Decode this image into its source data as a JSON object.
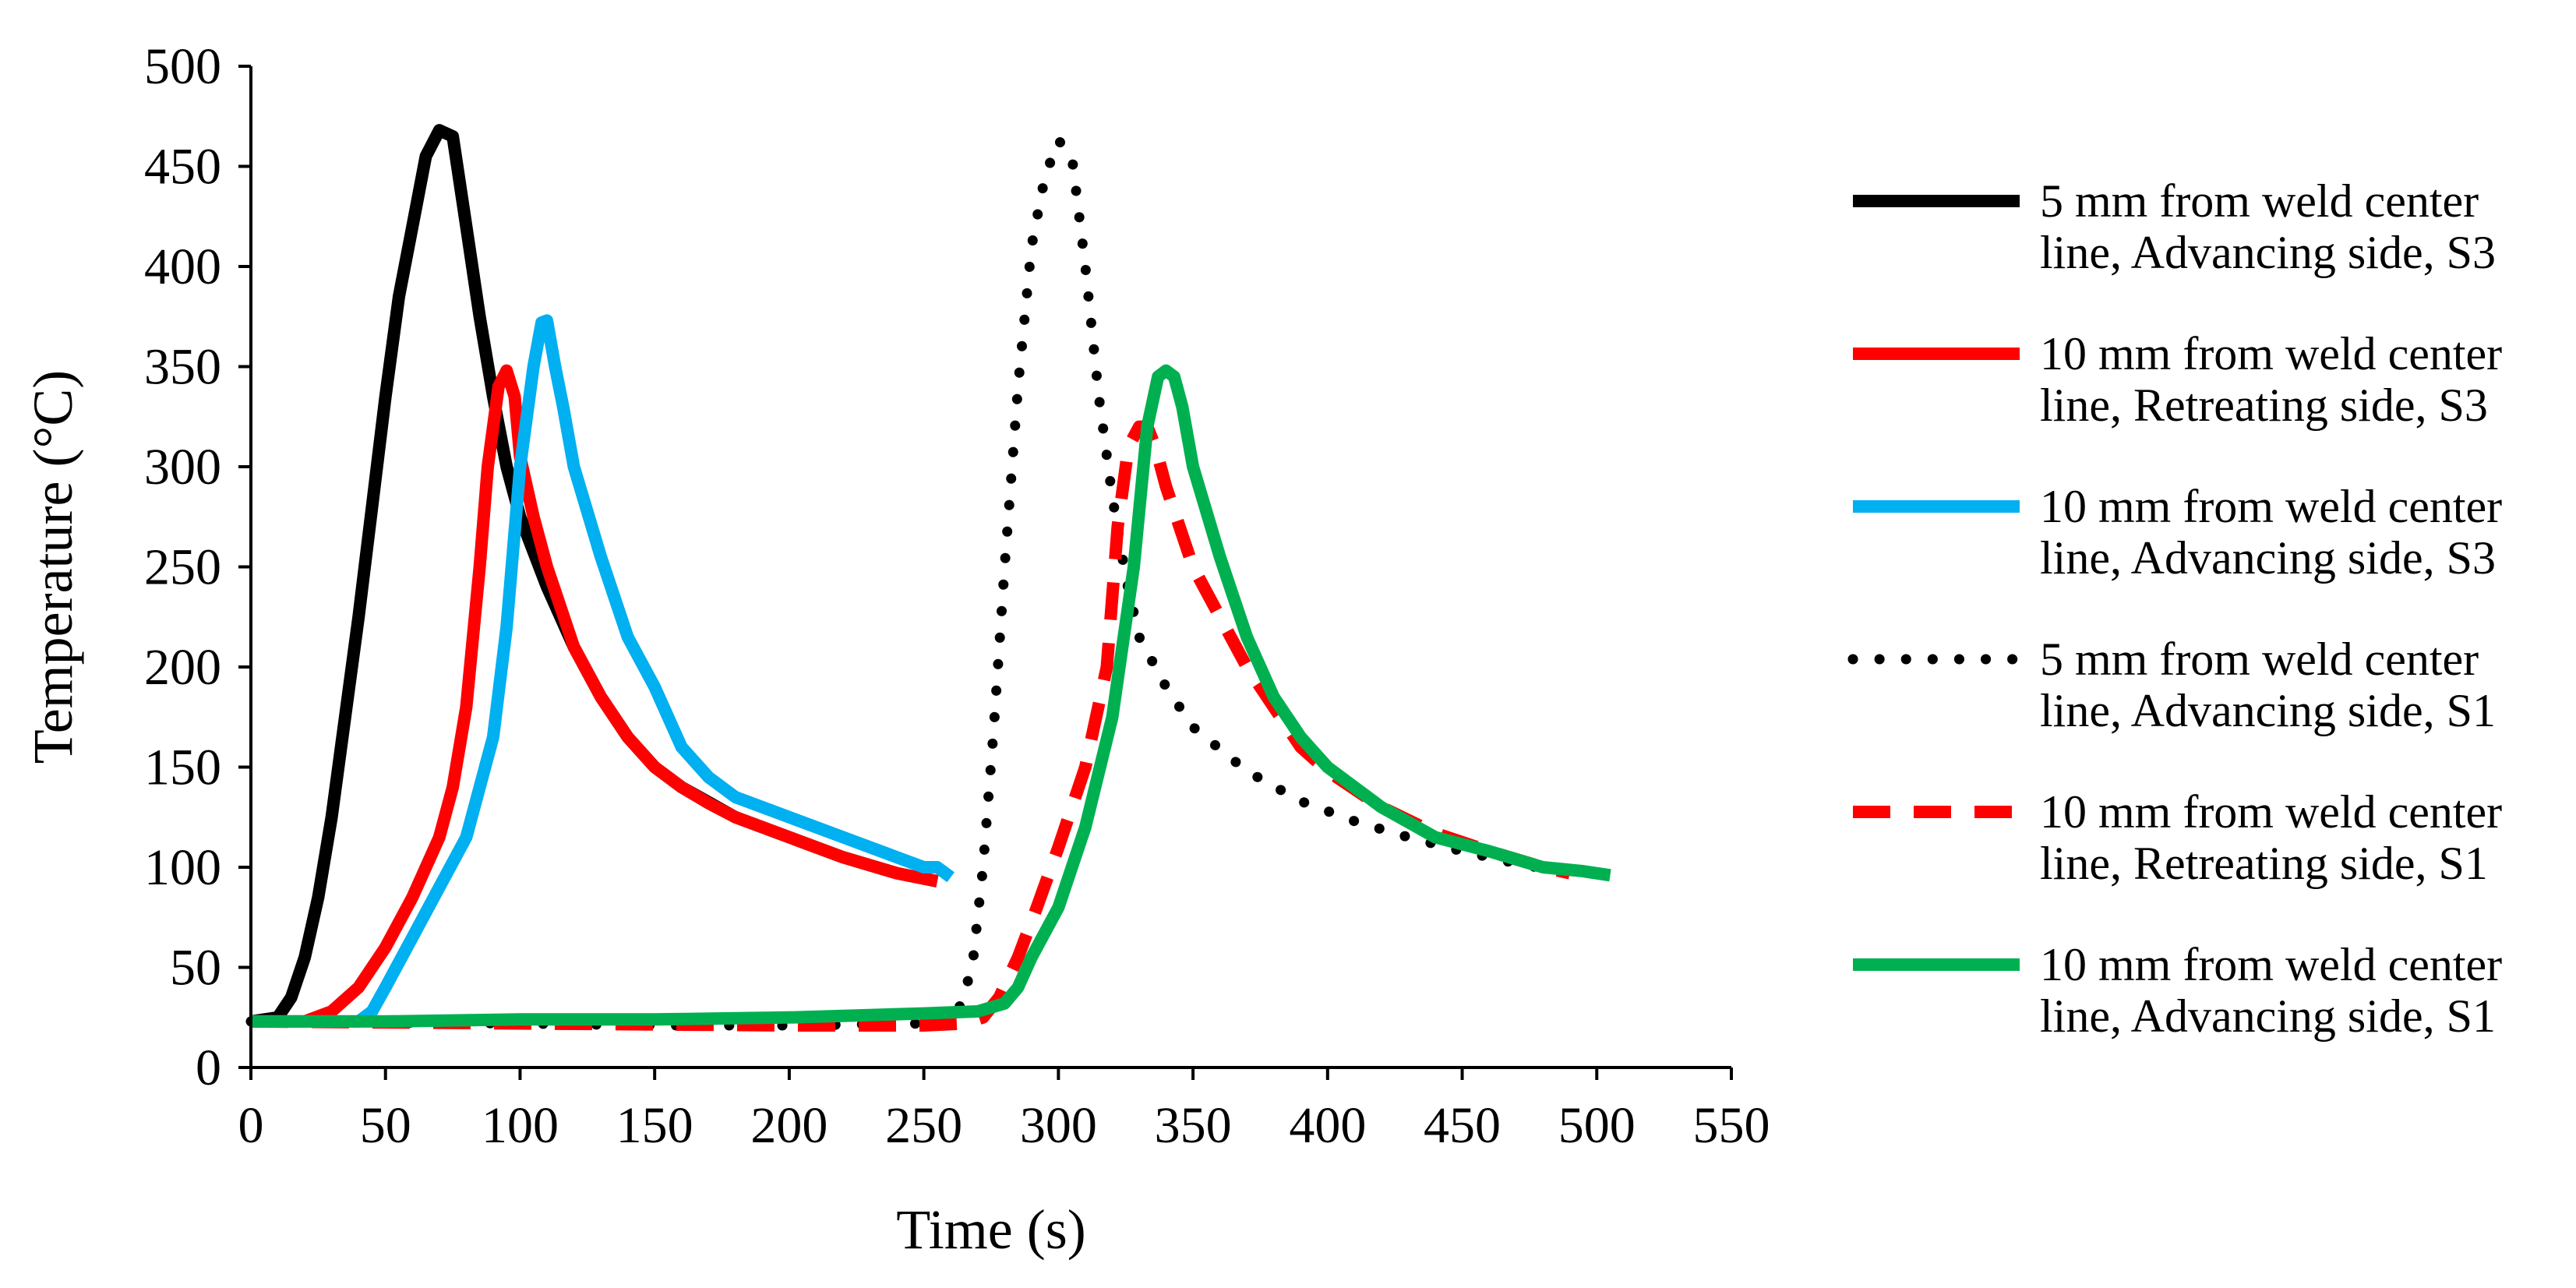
{
  "chart_data": {
    "type": "line",
    "title": "",
    "xlabel": "Time (s)",
    "ylabel": "Temperature (°C)",
    "xlim": [
      0,
      550
    ],
    "ylim": [
      0,
      500
    ],
    "xticks": [
      0,
      50,
      100,
      150,
      200,
      250,
      300,
      350,
      400,
      450,
      500,
      550
    ],
    "yticks": [
      0,
      50,
      100,
      150,
      200,
      250,
      300,
      350,
      400,
      450,
      500
    ],
    "grid": false,
    "legend_position": "right",
    "series": [
      {
        "name": "5 mm from weld center line, Advancing side, S3",
        "label_line1": "5 mm from weld center",
        "label_line2": "line, Advancing side, S3",
        "color": "#000000",
        "style": "solid",
        "x": [
          0,
          10,
          15,
          20,
          25,
          30,
          35,
          40,
          45,
          50,
          55,
          60,
          65,
          70,
          75,
          80,
          85,
          90,
          95,
          100,
          110,
          120,
          130,
          140,
          150,
          160,
          180,
          200,
          220,
          240,
          255
        ],
        "y": [
          23,
          25,
          35,
          55,
          85,
          125,
          175,
          225,
          280,
          335,
          385,
          420,
          455,
          468,
          465,
          420,
          375,
          335,
          300,
          275,
          240,
          210,
          185,
          165,
          150,
          140,
          125,
          115,
          105,
          97,
          93
        ]
      },
      {
        "name": "10 mm from weld center line, Retreating side, S3",
        "label_line1": "10 mm from weld center",
        "label_line2": "line, Retreating side, S3",
        "color": "#ff0000",
        "style": "solid",
        "x": [
          0,
          20,
          30,
          40,
          50,
          60,
          70,
          75,
          80,
          85,
          88,
          92,
          95,
          98,
          100,
          105,
          110,
          115,
          120,
          130,
          140,
          150,
          160,
          170,
          180,
          200,
          220,
          240,
          255
        ],
        "y": [
          23,
          23,
          28,
          40,
          60,
          85,
          115,
          140,
          180,
          250,
          300,
          340,
          348,
          335,
          305,
          275,
          250,
          230,
          210,
          185,
          165,
          150,
          140,
          132,
          125,
          115,
          105,
          97,
          93
        ]
      },
      {
        "name": "10 mm from weld center line, Advancing side, S3",
        "label_line1": "10 mm from weld center",
        "label_line2": "line, Advancing side, S3",
        "color": "#00b0f0",
        "style": "solid",
        "x": [
          0,
          40,
          45,
          50,
          60,
          70,
          80,
          90,
          95,
          100,
          105,
          108,
          110,
          113,
          116,
          120,
          130,
          140,
          150,
          160,
          170,
          180,
          200,
          220,
          240,
          250,
          255,
          260
        ],
        "y": [
          23,
          23,
          28,
          40,
          65,
          90,
          115,
          165,
          220,
          300,
          350,
          372,
          373,
          350,
          330,
          300,
          255,
          215,
          190,
          160,
          145,
          135,
          125,
          115,
          105,
          100,
          100,
          95
        ]
      },
      {
        "name": "5 mm from weld center line, Advancing side, S1",
        "label_line1": "5 mm from weld center",
        "label_line2": "line, Advancing side, S1",
        "color": "#000000",
        "style": "dotted",
        "x": [
          0,
          100,
          150,
          200,
          250,
          262,
          268,
          272,
          276,
          280,
          285,
          290,
          295,
          300,
          305,
          310,
          315,
          320,
          325,
          330,
          340,
          350,
          370,
          390,
          410,
          430,
          450,
          470,
          490
        ],
        "y": [
          23,
          22,
          21,
          21,
          22,
          25,
          50,
          100,
          170,
          250,
          340,
          410,
          445,
          463,
          455,
          400,
          335,
          285,
          245,
          215,
          190,
          170,
          148,
          133,
          123,
          115,
          108,
          102,
          97
        ]
      },
      {
        "name": "10 mm from weld center line, Retreating side, S1",
        "label_line1": "10 mm from weld center",
        "label_line2": "line, Retreating side, S1",
        "color": "#ff0000",
        "style": "dashed",
        "x": [
          0,
          100,
          200,
          250,
          265,
          272,
          278,
          285,
          292,
          300,
          310,
          318,
          322,
          326,
          330,
          333,
          336,
          340,
          345,
          350,
          360,
          370,
          380,
          390,
          400,
          420,
          440,
          460,
          480,
          490
        ],
        "y": [
          23,
          22,
          21,
          21,
          22,
          25,
          35,
          55,
          80,
          110,
          150,
          200,
          270,
          310,
          320,
          320,
          310,
          290,
          270,
          250,
          225,
          200,
          180,
          160,
          148,
          130,
          117,
          108,
          100,
          97
        ]
      },
      {
        "name": "10 mm from weld center line, Advancing side, S1",
        "label_line1": "10 mm from weld center",
        "label_line2": "line, Advancing side, S1",
        "color": "#00b050",
        "style": "solid",
        "x": [
          0,
          50,
          100,
          150,
          200,
          250,
          270,
          280,
          285,
          290,
          300,
          310,
          320,
          328,
          333,
          337,
          340,
          343,
          346,
          350,
          360,
          370,
          380,
          390,
          400,
          420,
          440,
          460,
          480,
          495,
          505
        ],
        "y": [
          23,
          23,
          24,
          24,
          25,
          27,
          28,
          32,
          40,
          55,
          80,
          120,
          175,
          250,
          320,
          345,
          348,
          345,
          330,
          300,
          255,
          215,
          185,
          165,
          150,
          130,
          115,
          108,
          100,
          98,
          96
        ]
      }
    ]
  }
}
